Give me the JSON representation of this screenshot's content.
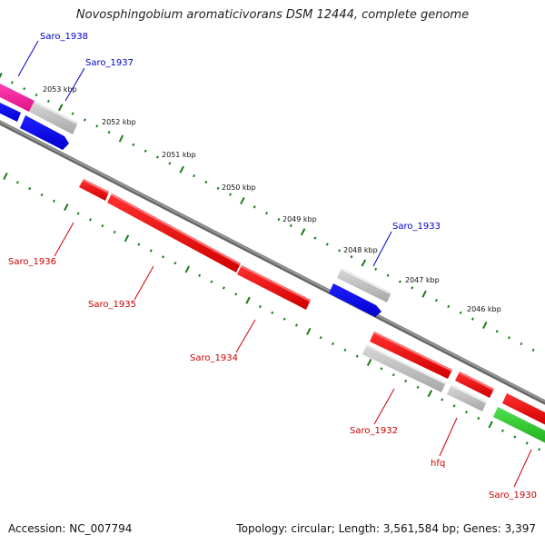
{
  "title": "Novosphingobium aromaticivorans DSM 12444, complete genome",
  "footer": {
    "accession": "Accession: NC_007794",
    "topology": "Topology: circular; Length: 3,561,584 bp; Genes: 3,397"
  },
  "colors": {
    "backbone": "#888888",
    "forward_gene": "#0000ee",
    "reverse_gene": "#ee0000",
    "rna_gene": "#bbbbbb",
    "tick": "#1a7a1a",
    "label_blue": "#0000cc",
    "label_red": "#cc0000"
  },
  "scale_labels": [
    "2053 kbp",
    "2052 kbp",
    "2051 kbp",
    "2050 kbp",
    "2049 kbp",
    "2048 kbp",
    "2047 kbp",
    "2046 kbp"
  ],
  "gene_labels": [
    {
      "name": "Saro_1938",
      "color": "blue"
    },
    {
      "name": "Saro_1937",
      "color": "blue"
    },
    {
      "name": "Saro_1933",
      "color": "blue"
    },
    {
      "name": "Saro_1936",
      "color": "red"
    },
    {
      "name": "Saro_1935",
      "color": "red"
    },
    {
      "name": "Saro_1934",
      "color": "red"
    },
    {
      "name": "Saro_1932",
      "color": "red"
    },
    {
      "name": "hfq",
      "color": "red"
    },
    {
      "name": "Saro_1930",
      "color": "red"
    }
  ]
}
